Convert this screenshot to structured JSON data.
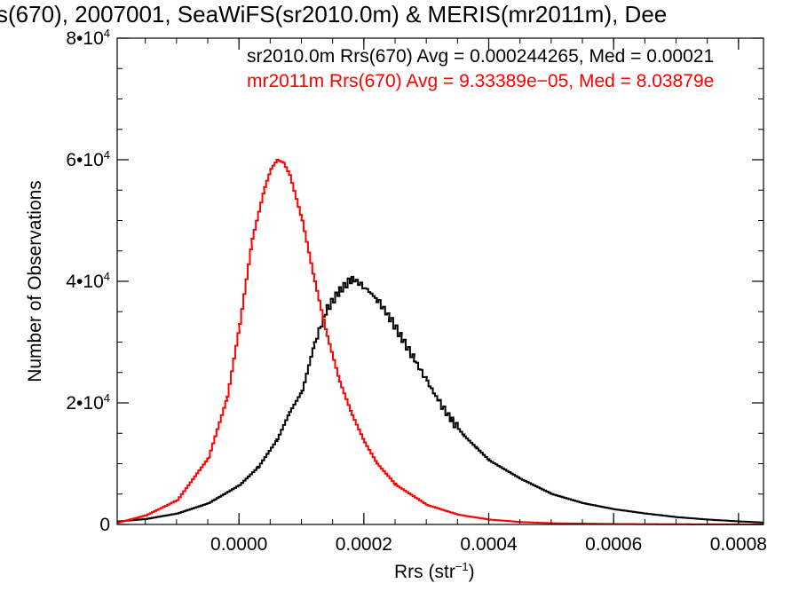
{
  "chart_data": {
    "type": "line",
    "title": "s(670), 2007001, SeaWiFS(sr2010.0m) & MERIS(mr2011m), Dee",
    "xlabel": "Rrs (str",
    "xlabel_sup": "−1",
    "xlabel_close": ")",
    "ylabel": "Number of Observations",
    "xlim": [
      -0.000195,
      0.00084
    ],
    "ylim": [
      0,
      80000
    ],
    "x_ticks": [
      {
        "value": 0.0,
        "label": "0.0000"
      },
      {
        "value": 0.0002,
        "label": "0.0002"
      },
      {
        "value": 0.0004,
        "label": "0.0004"
      },
      {
        "value": 0.0006,
        "label": "0.0006"
      },
      {
        "value": 0.0008,
        "label": "0.0008"
      }
    ],
    "y_ticks": [
      {
        "value": 0,
        "base": "0",
        "exp": ""
      },
      {
        "value": 20000,
        "base": "2•10",
        "exp": "4"
      },
      {
        "value": 40000,
        "base": "4•10",
        "exp": "4"
      },
      {
        "value": 60000,
        "base": "6•10",
        "exp": "4"
      },
      {
        "value": 80000,
        "base": "8•10",
        "exp": "4"
      }
    ],
    "annotations": [
      {
        "text": "sr2010.0m Rrs(670) Avg = 0.000244265, Med = 0.00021",
        "color": "#000000"
      },
      {
        "text": "mr2011m Rrs(670) Avg = 9.33389e−05, Med = 8.03879e",
        "color": "#ff0000"
      }
    ],
    "series": [
      {
        "color": "#000000",
        "points": [
          [
            -0.000195,
            500
          ],
          [
            -0.00015,
            900
          ],
          [
            -0.0001,
            1800
          ],
          [
            -5e-05,
            3500
          ],
          [
            0.0,
            6500
          ],
          [
            3e-05,
            9500
          ],
          [
            6e-05,
            14000
          ],
          [
            8e-05,
            18500
          ],
          [
            0.0001,
            22000
          ],
          [
            0.00012,
            30000
          ],
          [
            0.00014,
            35500
          ],
          [
            0.00016,
            38500
          ],
          [
            0.00018,
            40500
          ],
          [
            0.0002,
            39000
          ],
          [
            0.00022,
            37000
          ],
          [
            0.00024,
            34000
          ],
          [
            0.00026,
            30500
          ],
          [
            0.00028,
            27000
          ],
          [
            0.0003,
            23500
          ],
          [
            0.00032,
            20000
          ],
          [
            0.00034,
            17000
          ],
          [
            0.00036,
            14500
          ],
          [
            0.00038,
            12500
          ],
          [
            0.0004,
            10500
          ],
          [
            0.00045,
            7500
          ],
          [
            0.0005,
            5000
          ],
          [
            0.00055,
            3500
          ],
          [
            0.0006,
            2500
          ],
          [
            0.00065,
            1800
          ],
          [
            0.0007,
            1200
          ],
          [
            0.00075,
            800
          ],
          [
            0.0008,
            500
          ],
          [
            0.00084,
            300
          ]
        ]
      },
      {
        "color": "#ff0000",
        "points": [
          [
            -0.000195,
            300
          ],
          [
            -0.00015,
            1500
          ],
          [
            -0.0001,
            4000
          ],
          [
            -5e-05,
            11000
          ],
          [
            -2e-05,
            21000
          ],
          [
            0.0,
            33000
          ],
          [
            2e-05,
            47000
          ],
          [
            4e-05,
            55500
          ],
          [
            5e-05,
            58500
          ],
          [
            6e-05,
            60000
          ],
          [
            7e-05,
            59500
          ],
          [
            8e-05,
            57500
          ],
          [
            0.0001,
            50000
          ],
          [
            0.00012,
            40000
          ],
          [
            0.00014,
            31000
          ],
          [
            0.00016,
            23500
          ],
          [
            0.00018,
            18000
          ],
          [
            0.0002,
            13500
          ],
          [
            0.00022,
            10000
          ],
          [
            0.00025,
            6500
          ],
          [
            0.0003,
            3200
          ],
          [
            0.00035,
            1600
          ],
          [
            0.0004,
            800
          ],
          [
            0.00045,
            400
          ],
          [
            0.0005,
            200
          ],
          [
            0.0006,
            80
          ],
          [
            0.0007,
            30
          ],
          [
            0.00084,
            10
          ]
        ]
      }
    ]
  }
}
